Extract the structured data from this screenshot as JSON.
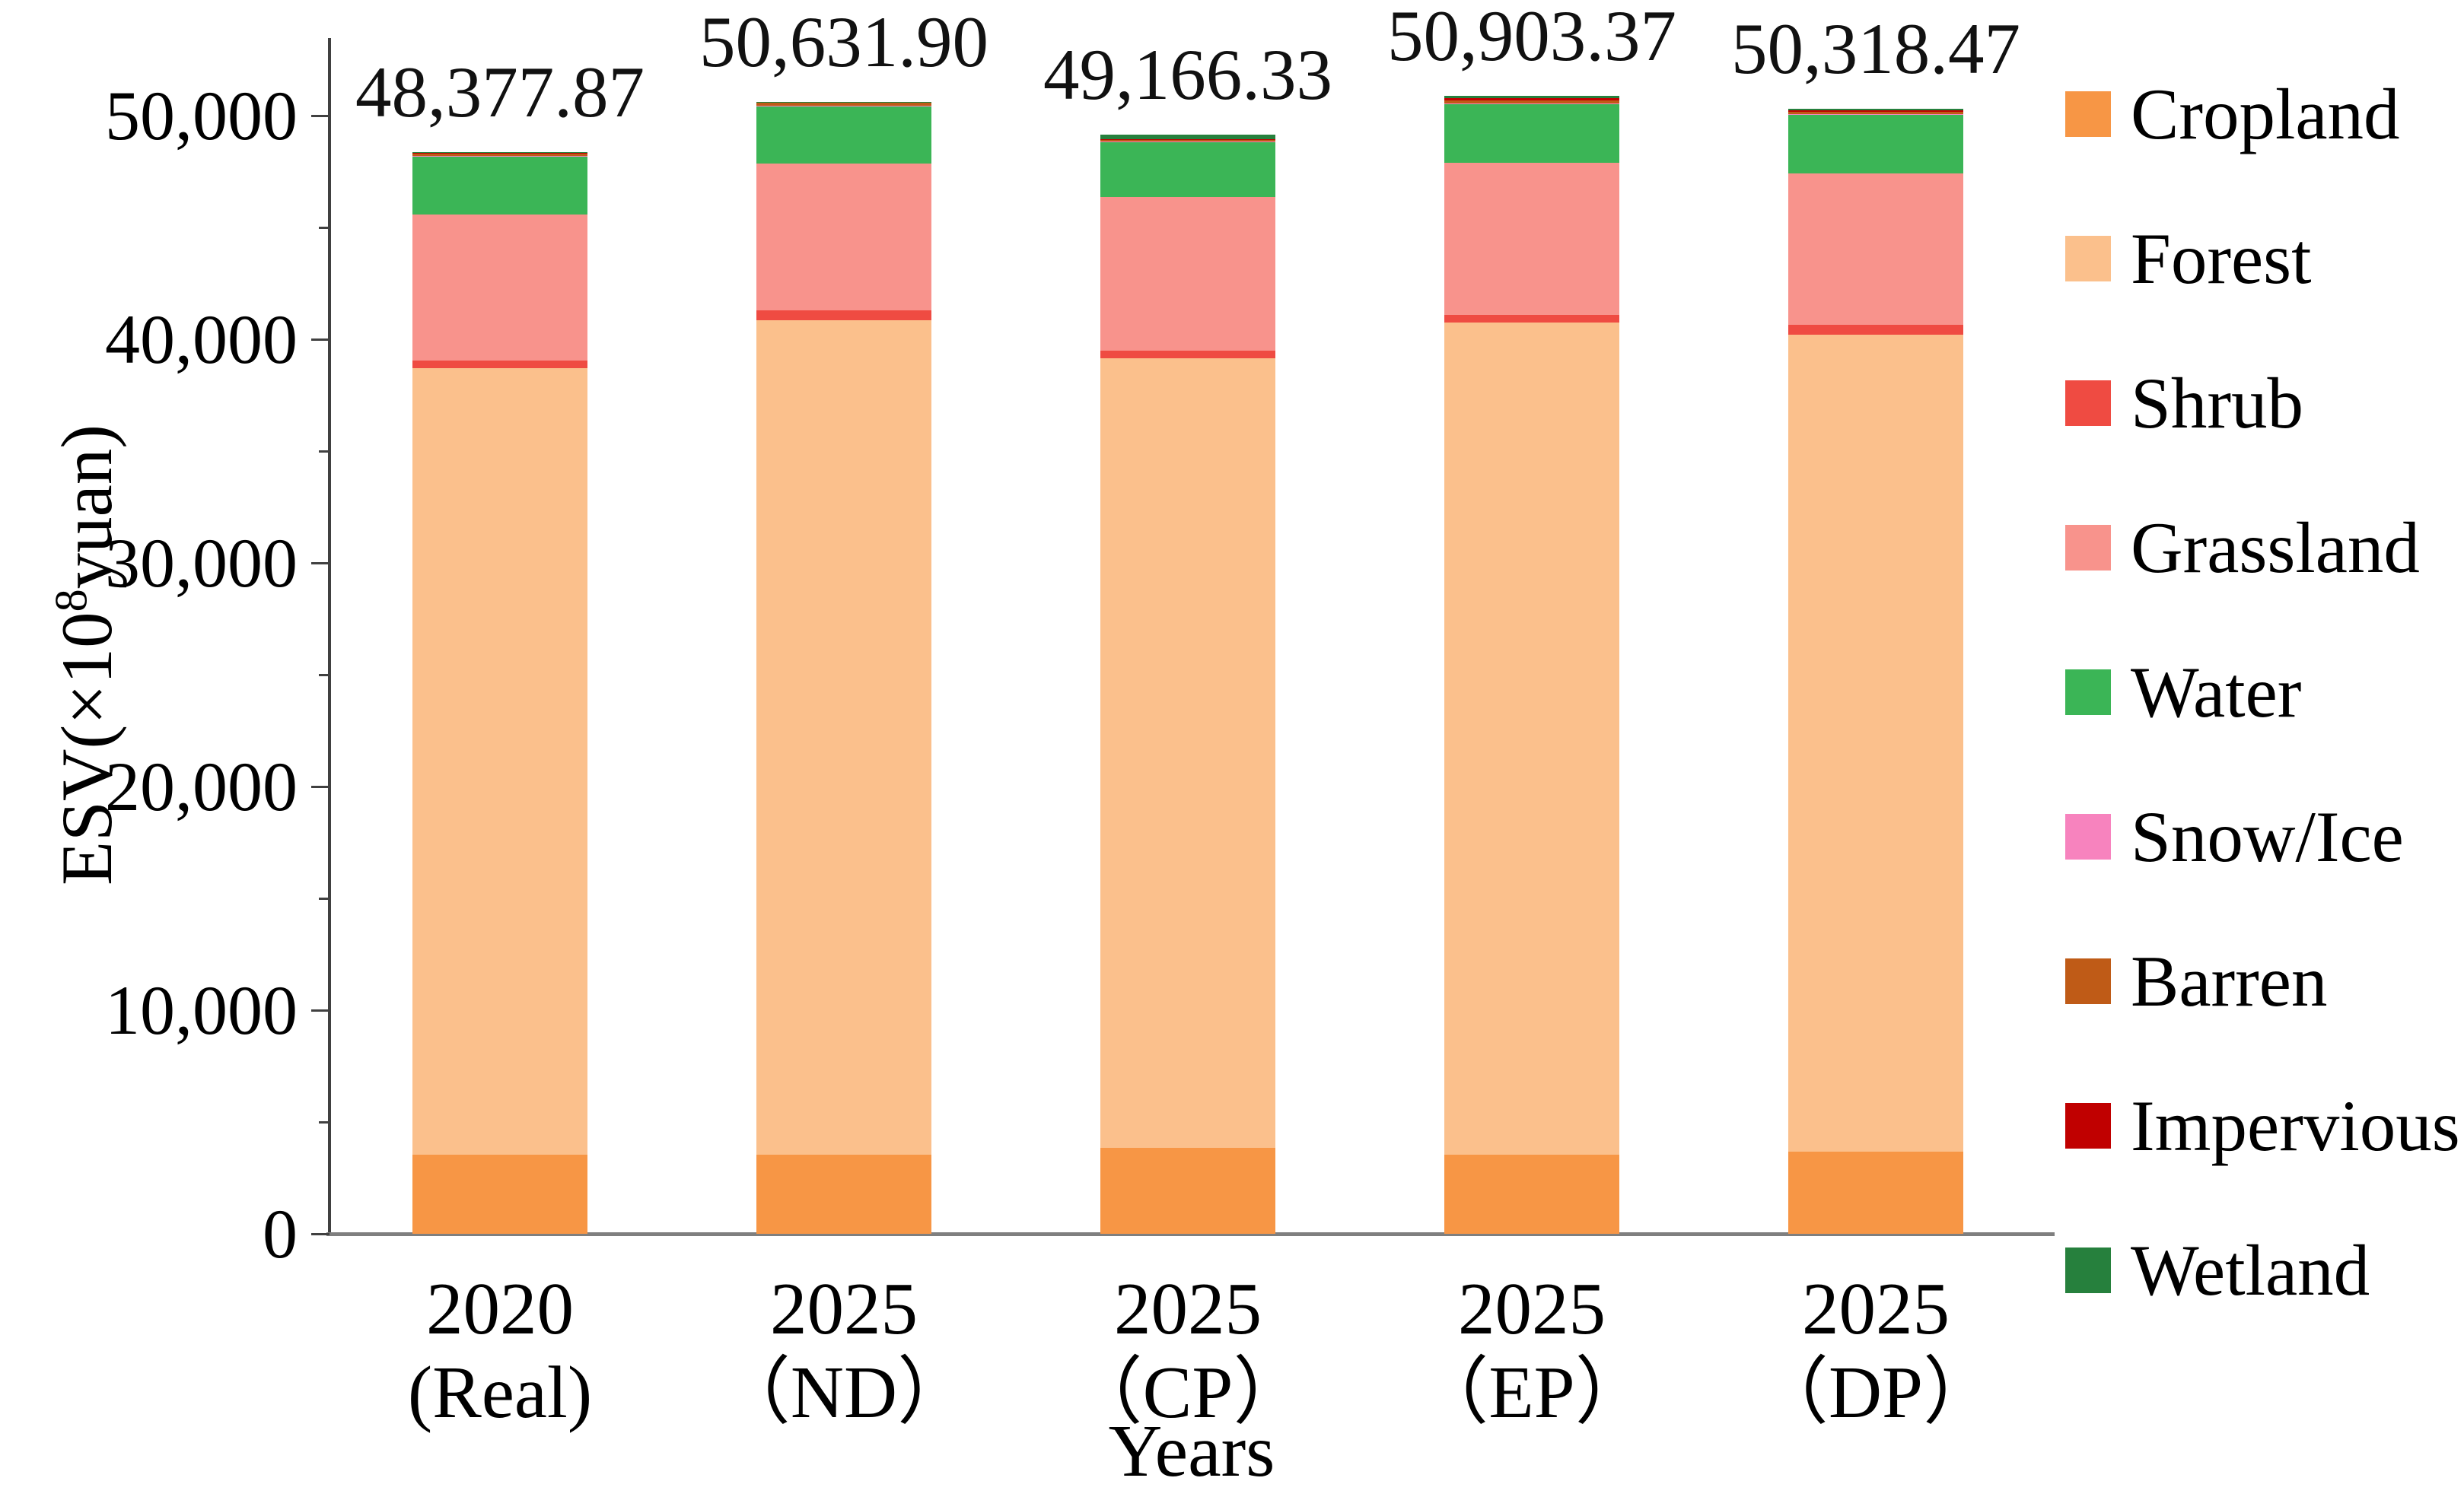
{
  "chart_data": {
    "type": "bar",
    "subtype": "stacked-vertical",
    "title": "",
    "xlabel": "Years",
    "ylabel": "ESV(×10⁸yuan)",
    "ylabel_parts": {
      "pre": "ESV(×10",
      "sup": "8",
      "post": "yuan)"
    },
    "ylim": [
      0,
      53000
    ],
    "grid": false,
    "legend_position": "right",
    "yticks": [
      {
        "value": 0,
        "label": "0"
      },
      {
        "value": 10000,
        "label": "10,000"
      },
      {
        "value": 20000,
        "label": "20,000"
      },
      {
        "value": 30000,
        "label": "30,000"
      },
      {
        "value": 40000,
        "label": "40,000"
      },
      {
        "value": 50000,
        "label": "50,000"
      }
    ],
    "minor_ticks": [
      5000,
      15000,
      25000,
      35000,
      45000
    ],
    "categories": [
      {
        "line1": "2020",
        "line2": "(Real)"
      },
      {
        "line1": "2025",
        "line2": "（ND）"
      },
      {
        "line1": "2025",
        "line2": "（CP）"
      },
      {
        "line1": "2025",
        "line2": "（EP）"
      },
      {
        "line1": "2025",
        "line2": "（DP）"
      }
    ],
    "totals": [
      48377.87,
      50631.9,
      49166.33,
      50903.37,
      50318.47
    ],
    "total_labels": [
      "48,377.87",
      "50,631.90",
      "49,166.33",
      "50,903.37",
      "50,318.47"
    ],
    "series": [
      {
        "name": "Cropland",
        "color": "#F79645",
        "values": [
          3540,
          3540,
          3840,
          3540,
          3670
        ]
      },
      {
        "name": "Forest",
        "color": "#FBC08C",
        "values": [
          35170,
          37310,
          35310,
          37210,
          36530
        ]
      },
      {
        "name": "Shrub",
        "color": "#EF4B42",
        "values": [
          340,
          450,
          350,
          350,
          440
        ]
      },
      {
        "name": "Grassland",
        "color": "#F8938C",
        "values": [
          6530,
          6560,
          6860,
          6790,
          6775
        ]
      },
      {
        "name": "Water",
        "color": "#3BB556",
        "values": [
          2590,
          2570,
          2480,
          2610,
          2635
        ]
      },
      {
        "name": "Snow/Ice",
        "color": "#F783BE",
        "values": [
          20,
          20,
          20,
          60,
          40
        ]
      },
      {
        "name": "Barren",
        "color": "#BF5B17",
        "values": [
          140,
          140,
          80,
          120,
          100
        ]
      },
      {
        "name": "Impervious",
        "color": "#C00000",
        "values": [
          15,
          15,
          15,
          100,
          60
        ]
      },
      {
        "name": "Wetland",
        "color": "#26803D",
        "values": [
          32.87,
          26.9,
          211.33,
          123.37,
          68.47
        ]
      }
    ]
  }
}
